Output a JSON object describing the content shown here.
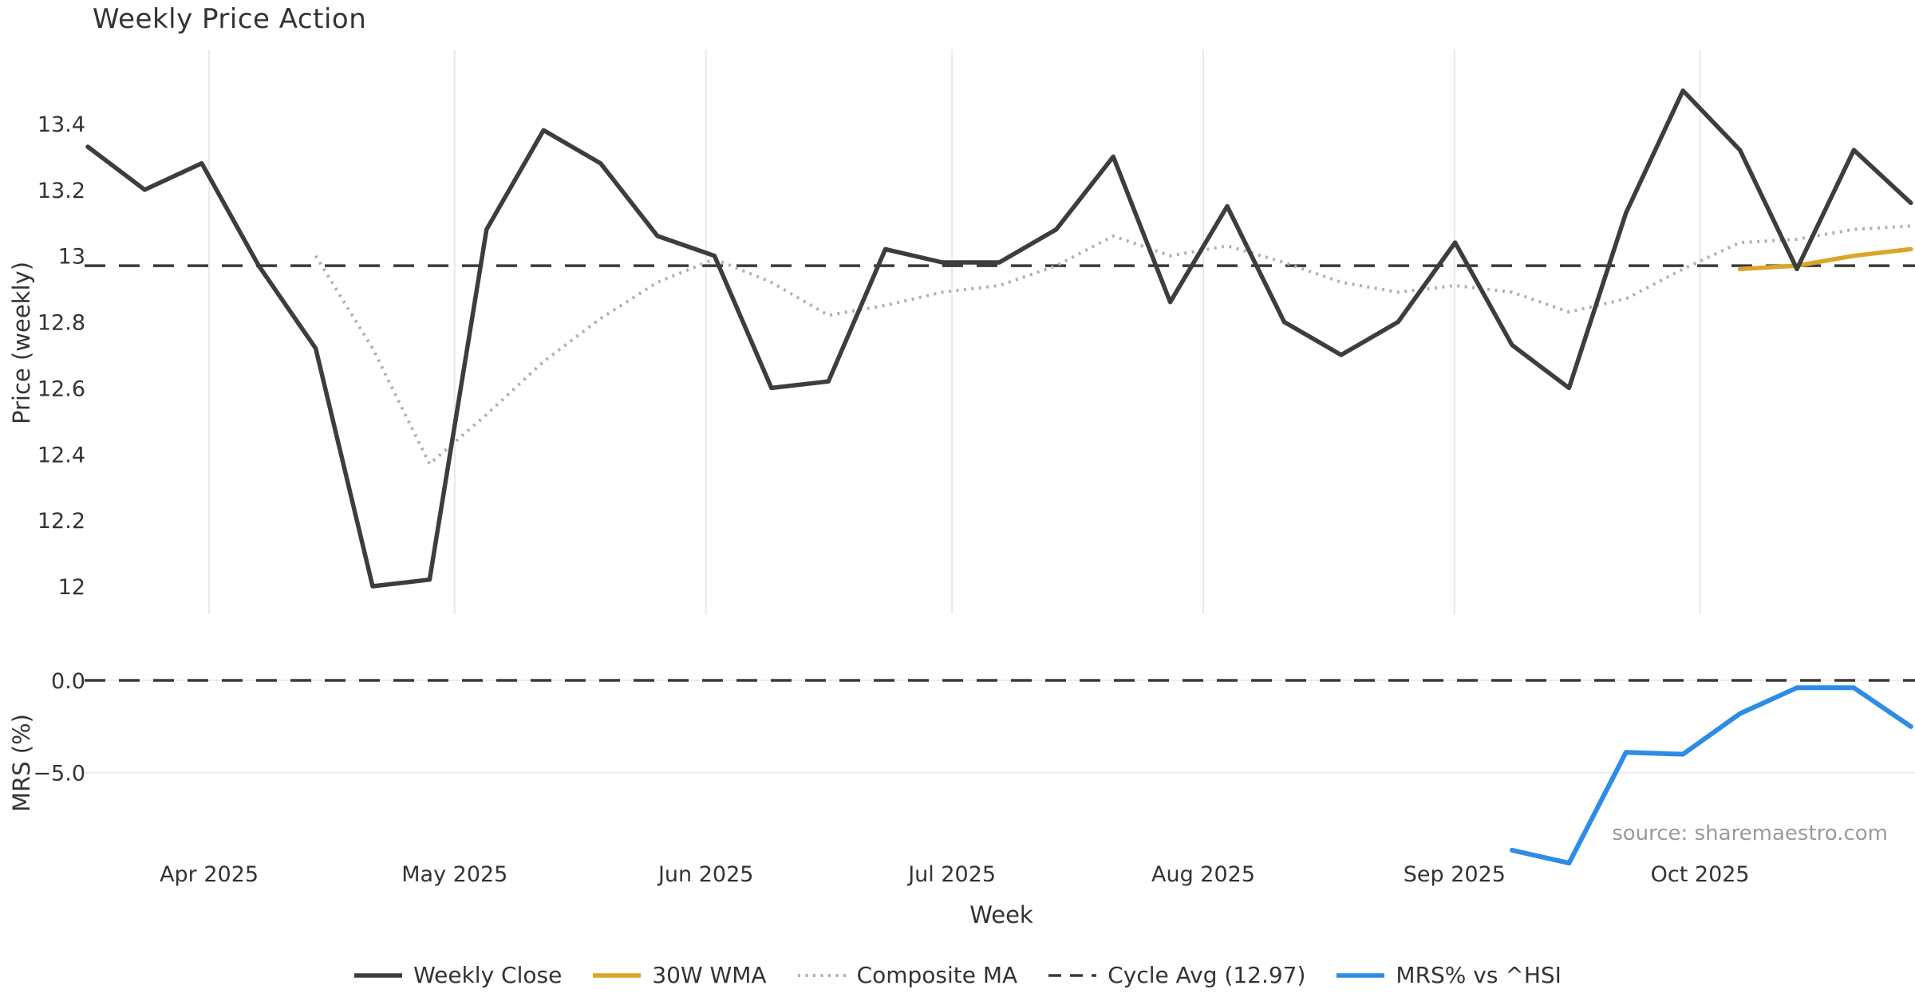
{
  "title": "Weekly Price Action",
  "source_note": "source: sharemaestro.com",
  "axes": {
    "price_panel": {
      "ylabel": "Price (weekly)",
      "yticks": [
        {
          "label": "13.4",
          "value": 13.4
        },
        {
          "label": "13.2",
          "value": 13.2
        },
        {
          "label": "13",
          "value": 13.0
        },
        {
          "label": "12.8",
          "value": 12.8
        },
        {
          "label": "12.6",
          "value": 12.6
        },
        {
          "label": "12.4",
          "value": 12.4
        },
        {
          "label": "12.2",
          "value": 12.2
        },
        {
          "label": "12",
          "value": 12.0
        }
      ]
    },
    "mrs_panel": {
      "ylabel": "MRS (%)",
      "yticks": [
        {
          "label": "0.0",
          "value": 0
        },
        {
          "label": "−5.0",
          "value": -5
        }
      ]
    },
    "x": {
      "label": "Week",
      "month_ticks": [
        {
          "label": "Apr 2025",
          "week": 3.13
        },
        {
          "label": "May 2025",
          "week": 7.44
        },
        {
          "label": "Jun 2025",
          "week": 11.85
        },
        {
          "label": "Jul 2025",
          "week": 16.17
        },
        {
          "label": "Aug 2025",
          "week": 20.58
        },
        {
          "label": "Sep 2025",
          "week": 24.99
        },
        {
          "label": "Oct 2025",
          "week": 29.3
        }
      ]
    }
  },
  "chart_data": {
    "type": "line",
    "x_unit": "week_index",
    "n_weeks": 33,
    "panels": [
      {
        "name": "price",
        "ylim": [
          11.92,
          13.62
        ],
        "grid": "vertical-months",
        "series": [
          {
            "name": "Weekly Close",
            "key": "close",
            "start_week": 1,
            "values": [
              13.33,
              13.2,
              13.28,
              12.97,
              12.72,
              12.0,
              12.02,
              13.08,
              13.38,
              13.28,
              13.06,
              13.0,
              12.6,
              12.62,
              13.02,
              12.98,
              12.98,
              13.08,
              13.3,
              12.86,
              13.15,
              12.8,
              12.7,
              12.8,
              13.04,
              12.73,
              12.6,
              13.13,
              13.5,
              13.32,
              12.96,
              13.32,
              13.16
            ]
          },
          {
            "name": "Composite MA",
            "key": "composite",
            "start_week": 5,
            "values": [
              13.0,
              12.72,
              12.37,
              12.52,
              12.68,
              12.81,
              12.92,
              12.99,
              12.92,
              12.82,
              12.85,
              12.89,
              12.91,
              12.97,
              13.06,
              13.0,
              13.03,
              12.98,
              12.92,
              12.89,
              12.91,
              12.89,
              12.83,
              12.87,
              12.96,
              13.04,
              13.05,
              13.08,
              13.09
            ]
          },
          {
            "name": "30W WMA",
            "key": "wma",
            "start_week": 30,
            "values": [
              12.96,
              12.97,
              13.0,
              13.02
            ]
          },
          {
            "name": "Cycle Avg (12.97)",
            "key": "cycle",
            "constant": 12.97
          }
        ]
      },
      {
        "name": "mrs",
        "ylim": [
          -10.0,
          2.5
        ],
        "grid": "horizontal-ticks",
        "series": [
          {
            "name": "MRS% vs ^HSI",
            "key": "mrs",
            "start_week": 26,
            "values": [
              -9.2,
              -9.9,
              -3.9,
              -4.0,
              -1.8,
              -0.4,
              -0.4,
              -2.5
            ]
          },
          {
            "name": "Zero line",
            "key": "zero",
            "constant": 0
          }
        ]
      }
    ]
  },
  "legend": [
    {
      "label": "Weekly Close",
      "key": "close"
    },
    {
      "label": "30W WMA",
      "key": "wma"
    },
    {
      "label": "Composite MA",
      "key": "composite"
    },
    {
      "label": "Cycle Avg (12.97)",
      "key": "cycle"
    },
    {
      "label": "MRS% vs ^HSI",
      "key": "mrs"
    }
  ],
  "colors": {
    "close": "#3d3d3d",
    "wma": "#d9a62b",
    "composite": "#b0b0b0",
    "cycle": "#3a3a3a",
    "mrs": "#2d8ce6",
    "grid_vertical": "#e9e9e9",
    "grid_horizontal": "#e9ecf1",
    "text": "#333333",
    "source": "#9a9a9a"
  }
}
